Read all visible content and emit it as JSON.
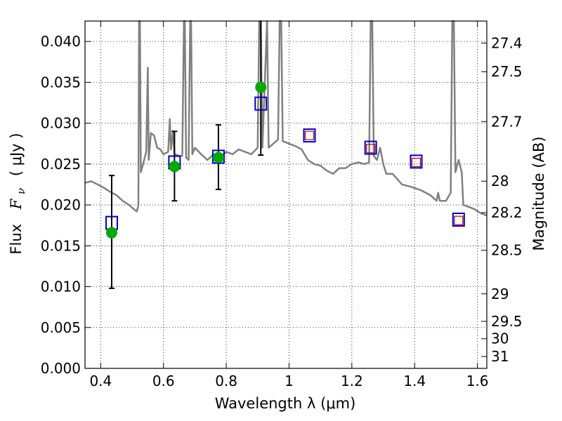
{
  "chart_data": {
    "type": "line",
    "xlabel": "Wavelength  λ (μm)",
    "ylabel_parts": {
      "flux": "Flux",
      "symbol": "F",
      "sub": "ν",
      "unit": "( μJy )"
    },
    "y2label": "Magnitude (AB)",
    "xlim": [
      0.35,
      1.63
    ],
    "ylim": [
      0.0,
      0.0425
    ],
    "grid": true,
    "x_ticks": [
      0.4,
      0.6,
      0.8,
      1.0,
      1.2,
      1.4,
      1.6
    ],
    "x_tick_labels": [
      "0.4",
      "0.6",
      "0.8",
      "1",
      "1.2",
      "1.4",
      "1.6"
    ],
    "y_ticks": [
      0.0,
      0.005,
      0.01,
      0.015,
      0.02,
      0.025,
      0.03,
      0.035,
      0.04
    ],
    "y_tick_labels": [
      "0.000",
      "0.005",
      "0.010",
      "0.015",
      "0.020",
      "0.025",
      "0.030",
      "0.035",
      "0.040"
    ],
    "mag_ticks": [
      27.4,
      27.5,
      27.7,
      28,
      28.2,
      28.5,
      29,
      29.5,
      30,
      31
    ],
    "mag_tick_labels": [
      "27.4",
      "27.5",
      "27.7",
      "28",
      "28.2",
      "28.5",
      "29",
      "29.5",
      "30",
      "31"
    ],
    "colors": {
      "model": "#808080",
      "model_phot": "#0000cc",
      "inner_square": "#cc0000",
      "observed": "#00aa00",
      "error_bar": "#000000"
    },
    "model_spectrum": [
      [
        0.35,
        0.0227
      ],
      [
        0.37,
        0.0229
      ],
      [
        0.39,
        0.0225
      ],
      [
        0.41,
        0.0221
      ],
      [
        0.43,
        0.0216
      ],
      [
        0.45,
        0.0212
      ],
      [
        0.47,
        0.0205
      ],
      [
        0.49,
        0.02
      ],
      [
        0.505,
        0.0195
      ],
      [
        0.515,
        0.0192
      ],
      [
        0.52,
        0.0199
      ],
      [
        0.522,
        0.0425
      ],
      [
        0.525,
        0.0425
      ],
      [
        0.528,
        0.024
      ],
      [
        0.535,
        0.025
      ],
      [
        0.545,
        0.0265
      ],
      [
        0.55,
        0.0368
      ],
      [
        0.553,
        0.0255
      ],
      [
        0.56,
        0.0288
      ],
      [
        0.57,
        0.0285
      ],
      [
        0.58,
        0.027
      ],
      [
        0.59,
        0.0268
      ],
      [
        0.6,
        0.0262
      ],
      [
        0.615,
        0.0265
      ],
      [
        0.62,
        0.0305
      ],
      [
        0.624,
        0.0268
      ],
      [
        0.63,
        0.029
      ],
      [
        0.635,
        0.0262
      ],
      [
        0.65,
        0.026
      ],
      [
        0.66,
        0.026
      ],
      [
        0.665,
        0.0425
      ],
      [
        0.668,
        0.0425
      ],
      [
        0.672,
        0.0258
      ],
      [
        0.68,
        0.0255
      ],
      [
        0.685,
        0.0425
      ],
      [
        0.688,
        0.0425
      ],
      [
        0.692,
        0.0262
      ],
      [
        0.7,
        0.027
      ],
      [
        0.72,
        0.0262
      ],
      [
        0.74,
        0.0255
      ],
      [
        0.76,
        0.0262
      ],
      [
        0.78,
        0.0258
      ],
      [
        0.8,
        0.0265
      ],
      [
        0.82,
        0.0262
      ],
      [
        0.84,
        0.0268
      ],
      [
        0.86,
        0.0265
      ],
      [
        0.88,
        0.0262
      ],
      [
        0.9,
        0.027
      ],
      [
        0.905,
        0.0425
      ],
      [
        0.91,
        0.0425
      ],
      [
        0.915,
        0.027
      ],
      [
        0.93,
        0.0425
      ],
      [
        0.935,
        0.027
      ],
      [
        0.95,
        0.0275
      ],
      [
        0.965,
        0.028
      ],
      [
        0.97,
        0.0425
      ],
      [
        0.975,
        0.0425
      ],
      [
        0.98,
        0.0278
      ],
      [
        1.0,
        0.0275
      ],
      [
        1.02,
        0.0272
      ],
      [
        1.04,
        0.0268
      ],
      [
        1.06,
        0.0255
      ],
      [
        1.08,
        0.025
      ],
      [
        1.1,
        0.0248
      ],
      [
        1.12,
        0.0242
      ],
      [
        1.14,
        0.0238
      ],
      [
        1.16,
        0.0245
      ],
      [
        1.18,
        0.0245
      ],
      [
        1.2,
        0.025
      ],
      [
        1.22,
        0.0252
      ],
      [
        1.24,
        0.025
      ],
      [
        1.255,
        0.0252
      ],
      [
        1.26,
        0.0425
      ],
      [
        1.265,
        0.0425
      ],
      [
        1.27,
        0.026
      ],
      [
        1.28,
        0.0255
      ],
      [
        1.29,
        0.027
      ],
      [
        1.3,
        0.025
      ],
      [
        1.31,
        0.0238
      ],
      [
        1.33,
        0.0238
      ],
      [
        1.36,
        0.0225
      ],
      [
        1.39,
        0.0222
      ],
      [
        1.42,
        0.0218
      ],
      [
        1.45,
        0.0212
      ],
      [
        1.47,
        0.0205
      ],
      [
        1.475,
        0.0215
      ],
      [
        1.48,
        0.0205
      ],
      [
        1.5,
        0.0205
      ],
      [
        1.515,
        0.0215
      ],
      [
        1.52,
        0.0425
      ],
      [
        1.525,
        0.0425
      ],
      [
        1.53,
        0.024
      ],
      [
        1.54,
        0.0255
      ],
      [
        1.55,
        0.024
      ],
      [
        1.555,
        0.02
      ],
      [
        1.57,
        0.0198
      ],
      [
        1.59,
        0.0195
      ],
      [
        1.61,
        0.019
      ],
      [
        1.63,
        0.0187
      ]
    ],
    "model_photometry": [
      {
        "x": 0.435,
        "y": 0.0178
      },
      {
        "x": 0.635,
        "y": 0.0252
      },
      {
        "x": 0.775,
        "y": 0.0259
      },
      {
        "x": 0.91,
        "y": 0.0324
      },
      {
        "x": 1.065,
        "y": 0.0285
      },
      {
        "x": 1.26,
        "y": 0.027
      },
      {
        "x": 1.405,
        "y": 0.0253
      },
      {
        "x": 1.54,
        "y": 0.0182
      }
    ],
    "inner_squares": [
      {
        "x": 1.065,
        "y": 0.0285
      },
      {
        "x": 1.26,
        "y": 0.0269
      },
      {
        "x": 1.405,
        "y": 0.0252
      },
      {
        "x": 1.54,
        "y": 0.0181
      }
    ],
    "observed_photometry": [
      {
        "x": 0.435,
        "y": 0.0166,
        "ylo": 0.0098,
        "yhi": 0.0236
      },
      {
        "x": 0.635,
        "y": 0.0247,
        "ylo": 0.0205,
        "yhi": 0.029
      },
      {
        "x": 0.775,
        "y": 0.0258,
        "ylo": 0.0219,
        "yhi": 0.0298
      },
      {
        "x": 0.91,
        "y": 0.0344,
        "ylo": 0.0261,
        "yhi": 0.0425
      }
    ]
  }
}
